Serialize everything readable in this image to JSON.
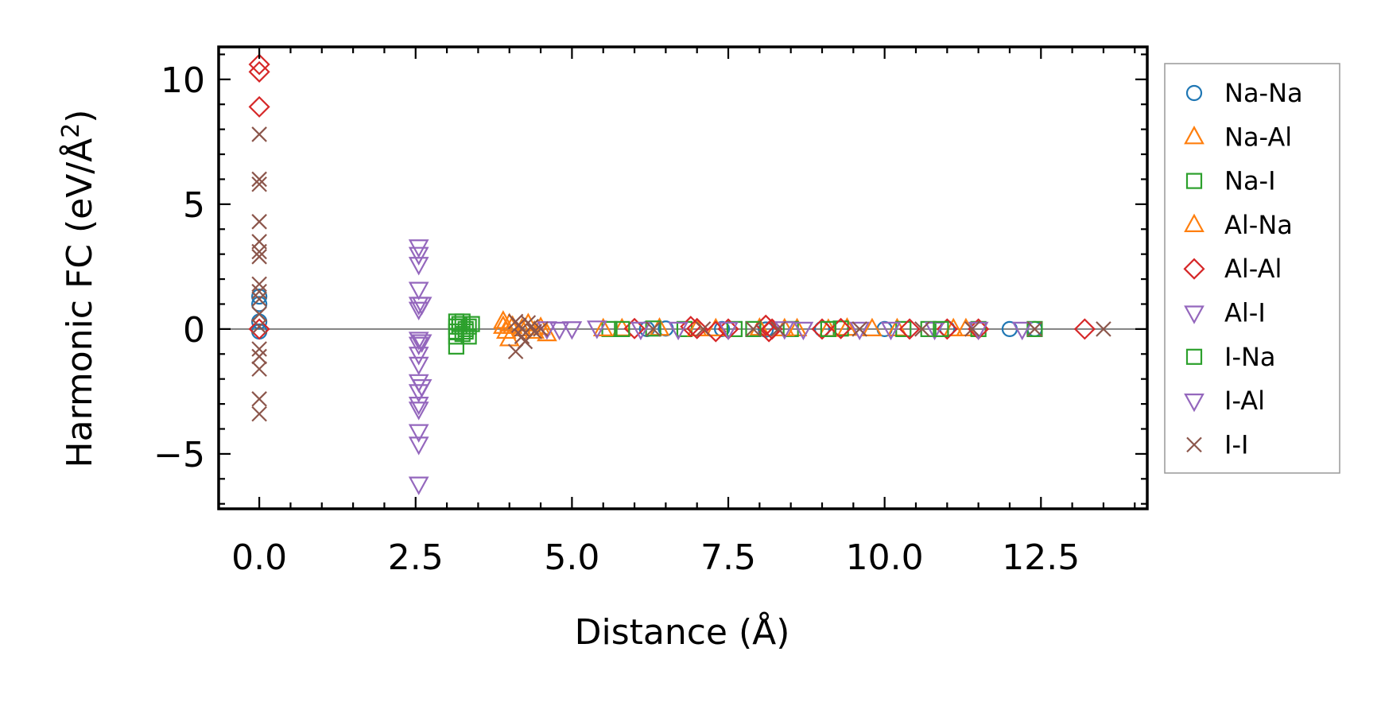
{
  "chart_data": {
    "type": "scatter",
    "xlabel": "Distance (Å)",
    "ylabel_main": "Harmonic FC (eV/Å",
    "ylabel_sup": "2",
    "ylabel_close": ")",
    "xlim": [
      -0.65,
      14.2
    ],
    "ylim": [
      -7.2,
      11.3
    ],
    "x_ticks": [
      0.0,
      2.5,
      5.0,
      7.5,
      10.0,
      12.5
    ],
    "x_tick_labels": [
      "0.0",
      "2.5",
      "5.0",
      "7.5",
      "10.0",
      "12.5"
    ],
    "y_ticks": [
      10,
      5,
      0,
      -5
    ],
    "y_tick_labels": [
      "10",
      "5",
      "0",
      "−5"
    ],
    "zero_line": true,
    "grid": false,
    "legend_position": "right-outside",
    "series": [
      {
        "name": "Na-Na",
        "marker": "circle",
        "color": "#1f77b4",
        "points": [
          [
            0,
            1.3
          ],
          [
            0,
            1.0
          ],
          [
            0,
            0.3
          ],
          [
            0,
            -0.1
          ],
          [
            6.2,
            0
          ],
          [
            6.5,
            0.02
          ],
          [
            7.4,
            0
          ],
          [
            8.1,
            -0.02
          ],
          [
            9.0,
            0
          ],
          [
            10.0,
            0
          ],
          [
            11.0,
            0.02
          ],
          [
            12.0,
            0
          ],
          [
            12.4,
            0
          ]
        ]
      },
      {
        "name": "Na-Al",
        "marker": "triangle-up",
        "color": "#ff7f0e",
        "points": [
          [
            3.9,
            0.3
          ],
          [
            3.95,
            -0.1
          ],
          [
            4.0,
            -0.4
          ],
          [
            4.05,
            0.1
          ],
          [
            4.3,
            0.2
          ],
          [
            4.5,
            0.05
          ],
          [
            4.6,
            -0.2
          ],
          [
            5.8,
            0
          ],
          [
            6.4,
            0.02
          ],
          [
            7.3,
            0
          ],
          [
            8.0,
            0.02
          ],
          [
            8.6,
            0
          ],
          [
            9.4,
            0.02
          ],
          [
            10.2,
            0
          ],
          [
            11.3,
            0
          ]
        ]
      },
      {
        "name": "Na-I",
        "marker": "square",
        "color": "#2ca02c",
        "points": [
          [
            3.15,
            0.3
          ],
          [
            3.15,
            0.1
          ],
          [
            3.15,
            -0.1
          ],
          [
            3.15,
            -0.3
          ],
          [
            3.15,
            -0.7
          ],
          [
            3.2,
            0.2
          ],
          [
            3.25,
            0.3
          ],
          [
            3.25,
            -0.2
          ],
          [
            3.3,
            0
          ],
          [
            3.35,
            0.1
          ],
          [
            3.35,
            -0.3
          ],
          [
            3.4,
            0.2
          ],
          [
            5.6,
            0
          ],
          [
            6.3,
            0.02
          ],
          [
            6.8,
            0
          ],
          [
            7.6,
            0
          ],
          [
            8.5,
            0
          ],
          [
            9.3,
            0.02
          ],
          [
            10.3,
            0
          ],
          [
            10.7,
            0
          ],
          [
            11.5,
            0
          ],
          [
            12.4,
            0
          ]
        ]
      },
      {
        "name": "Al-Na",
        "marker": "triangle-up",
        "color": "#ff7f0e",
        "points": [
          [
            3.9,
            0.1
          ],
          [
            4.0,
            0.2
          ],
          [
            4.2,
            0.0
          ],
          [
            4.4,
            -0.1
          ],
          [
            5.5,
            0
          ],
          [
            7.0,
            0
          ],
          [
            8.4,
            0
          ],
          [
            9.1,
            -0.02
          ],
          [
            9.8,
            0
          ],
          [
            11.1,
            0
          ]
        ]
      },
      {
        "name": "Al-Al",
        "marker": "diamond",
        "color": "#d62728",
        "points": [
          [
            0,
            10.6
          ],
          [
            0,
            10.3
          ],
          [
            0,
            8.9
          ],
          [
            0,
            0.0
          ],
          [
            6.0,
            0.02
          ],
          [
            6.9,
            0.1
          ],
          [
            7.0,
            0.02
          ],
          [
            7.3,
            -0.1
          ],
          [
            7.5,
            0
          ],
          [
            8.1,
            0.15
          ],
          [
            8.15,
            -0.1
          ],
          [
            8.2,
            0
          ],
          [
            9.0,
            0
          ],
          [
            9.3,
            0.02
          ],
          [
            10.4,
            0
          ],
          [
            11.0,
            0
          ],
          [
            11.5,
            0
          ],
          [
            13.2,
            0
          ]
        ]
      },
      {
        "name": "Al-I",
        "marker": "triangle-down",
        "color": "#9467bd",
        "points": [
          [
            2.55,
            3.3
          ],
          [
            2.55,
            3.0
          ],
          [
            2.55,
            2.6
          ],
          [
            2.55,
            1.6
          ],
          [
            2.55,
            1.0
          ],
          [
            2.55,
            0.8
          ],
          [
            2.55,
            -0.4
          ],
          [
            2.55,
            -0.6
          ],
          [
            2.55,
            -1.0
          ],
          [
            2.55,
            -1.4
          ],
          [
            2.55,
            -2.1
          ],
          [
            2.55,
            -2.5
          ],
          [
            2.55,
            -3.0
          ],
          [
            2.55,
            -3.2
          ],
          [
            2.55,
            -4.1
          ],
          [
            2.55,
            -4.6
          ],
          [
            2.55,
            -6.2
          ],
          [
            4.8,
            0
          ],
          [
            5.0,
            0.02
          ],
          [
            5.4,
            0.05
          ],
          [
            6.1,
            0
          ],
          [
            7.5,
            0
          ],
          [
            8.7,
            0
          ],
          [
            9.6,
            0
          ],
          [
            10.8,
            0
          ],
          [
            11.5,
            0
          ]
        ]
      },
      {
        "name": "I-Na",
        "marker": "square",
        "color": "#2ca02c",
        "points": [
          [
            3.2,
            0.1
          ],
          [
            3.3,
            -0.1
          ],
          [
            5.8,
            0
          ],
          [
            7.9,
            0
          ],
          [
            9.1,
            0
          ],
          [
            10.9,
            0
          ]
        ]
      },
      {
        "name": "I-Al",
        "marker": "triangle-down",
        "color": "#9467bd",
        "points": [
          [
            2.6,
            1.0
          ],
          [
            2.6,
            -0.5
          ],
          [
            2.6,
            -2.3
          ],
          [
            4.6,
            0.02
          ],
          [
            6.7,
            0
          ],
          [
            8.4,
            0.02
          ],
          [
            10.1,
            0
          ],
          [
            12.2,
            0
          ]
        ]
      },
      {
        "name": "I-I",
        "marker": "x",
        "color": "#8c564b",
        "points": [
          [
            0,
            7.8
          ],
          [
            0,
            6.0
          ],
          [
            0,
            5.8
          ],
          [
            0,
            4.3
          ],
          [
            0,
            3.5
          ],
          [
            0,
            3.1
          ],
          [
            0,
            2.9
          ],
          [
            0,
            1.8
          ],
          [
            0,
            1.5
          ],
          [
            0,
            1.2
          ],
          [
            0,
            0.6
          ],
          [
            0,
            0.1
          ],
          [
            0,
            -0.8
          ],
          [
            0,
            -1.1
          ],
          [
            0,
            -1.6
          ],
          [
            0,
            -2.8
          ],
          [
            0,
            -3.4
          ],
          [
            4.1,
            0.3
          ],
          [
            4.15,
            0.15
          ],
          [
            4.2,
            0.0
          ],
          [
            4.2,
            -0.3
          ],
          [
            4.25,
            -0.5
          ],
          [
            4.3,
            0.25
          ],
          [
            4.35,
            0.1
          ],
          [
            4.4,
            -0.1
          ],
          [
            4.1,
            -0.9
          ],
          [
            4.5,
            0
          ],
          [
            6.3,
            0
          ],
          [
            7.1,
            0
          ],
          [
            7.9,
            0
          ],
          [
            8.3,
            0
          ],
          [
            9.6,
            0
          ],
          [
            10.6,
            0
          ],
          [
            11.4,
            0
          ],
          [
            12.4,
            0
          ],
          [
            13.5,
            0
          ]
        ]
      }
    ]
  }
}
